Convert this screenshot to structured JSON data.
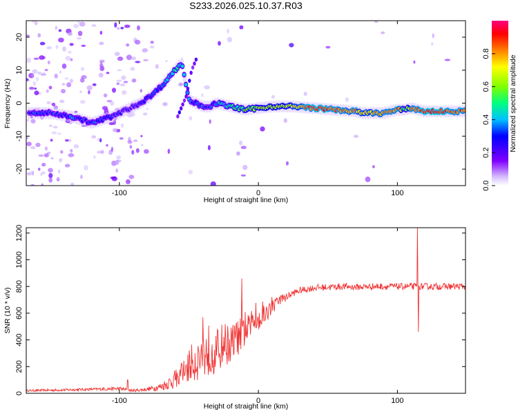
{
  "title": "S233.2026.025.10.37.R03",
  "chart_data": [
    {
      "type": "heatmap",
      "name": "spectrogram",
      "xlabel": "Height of straight line (km)",
      "ylabel": "Frequency (Hz)",
      "xlim": [
        -167,
        149
      ],
      "ylim": [
        -25,
        25
      ],
      "xticks": [
        -100,
        0,
        100
      ],
      "yticks": [
        20,
        10,
        0,
        -10,
        -20
      ],
      "colorbar": {
        "label": "Normalized spectral amplitude",
        "range": [
          0,
          1
        ],
        "ticks": [
          0.0,
          0.2,
          0.4,
          0.6,
          0.8
        ],
        "colors": [
          "#ffffff",
          "#d9c3ff",
          "#8000ff",
          "#0000ff",
          "#00c0ff",
          "#00ff80",
          "#80ff00",
          "#ffff00",
          "#ff8000",
          "#ff0000",
          "#ff0080"
        ]
      },
      "ridge": {
        "x": [
          -165,
          -150,
          -135,
          -120,
          -105,
          -95,
          -85,
          -78,
          -70,
          -62,
          -58,
          -55,
          -50,
          -45,
          -40,
          -35,
          -30,
          -20,
          -10,
          0,
          10,
          25,
          40,
          55,
          70,
          75,
          80,
          90,
          100,
          105,
          110,
          120,
          130,
          149
        ],
        "freq": [
          -3,
          -3,
          -4,
          -6,
          -4,
          -2,
          0,
          2,
          5,
          9,
          11,
          12,
          1,
          0,
          -1,
          -1,
          0,
          -1,
          -2,
          -1.5,
          -1,
          -1,
          -1.5,
          -2,
          -2.5,
          -3,
          -3,
          -3,
          -2,
          -2,
          -1.5,
          -2.5,
          -2.5,
          -2.5
        ],
        "amplitude": [
          0.3,
          0.3,
          0.35,
          0.3,
          0.3,
          0.25,
          0.25,
          0.3,
          0.35,
          0.4,
          0.45,
          0.45,
          0.35,
          0.35,
          0.35,
          0.3,
          0.4,
          0.45,
          0.55,
          0.6,
          0.65,
          0.7,
          0.9,
          0.85,
          0.8,
          0.7,
          0.75,
          0.8,
          0.85,
          0.5,
          0.8,
          0.9,
          0.9,
          0.85
        ]
      },
      "branch": {
        "x": [
          -58,
          -52,
          -48,
          -44
        ],
        "freq": [
          -4,
          2,
          10,
          14
        ]
      }
    },
    {
      "type": "line",
      "name": "snr",
      "xlabel": "Height of straight line (km)",
      "ylabel": "SNR (10 * v/v)",
      "xlim": [
        -167,
        149
      ],
      "ylim": [
        0,
        1240
      ],
      "xticks": [
        -100,
        0,
        100
      ],
      "yticks": [
        0,
        200,
        400,
        600,
        800,
        1000,
        1200
      ],
      "color": "#f03232",
      "series": {
        "x": [
          -167,
          -140,
          -120,
          -100,
          -90,
          -80,
          -70,
          -62,
          -55,
          -50,
          -45,
          -40,
          -35,
          -30,
          -25,
          -20,
          -15,
          -10,
          -5,
          0,
          5,
          10,
          15,
          20,
          25,
          30,
          40,
          50,
          60,
          70,
          80,
          90,
          100,
          110,
          114,
          120,
          130,
          149
        ],
        "baseline": [
          20,
          25,
          30,
          35,
          20,
          30,
          50,
          90,
          150,
          210,
          250,
          290,
          330,
          300,
          380,
          360,
          420,
          450,
          520,
          550,
          600,
          640,
          700,
          720,
          750,
          770,
          790,
          795,
          800,
          795,
          800,
          800,
          800,
          800,
          800,
          800,
          800,
          800
        ],
        "noise": [
          8,
          10,
          10,
          15,
          10,
          15,
          30,
          60,
          90,
          130,
          160,
          180,
          200,
          180,
          160,
          150,
          140,
          120,
          100,
          80,
          70,
          60,
          40,
          30,
          25,
          25,
          25,
          25,
          25,
          25,
          25,
          25,
          25,
          25,
          25,
          25,
          25,
          25
        ]
      },
      "spikes": [
        {
          "x": -94,
          "y": 100
        },
        {
          "x": -40,
          "y": 570
        },
        {
          "x": -12,
          "y": 860
        },
        {
          "x": 114.5,
          "y": 1240
        },
        {
          "x": 115,
          "y": 460
        }
      ]
    }
  ]
}
